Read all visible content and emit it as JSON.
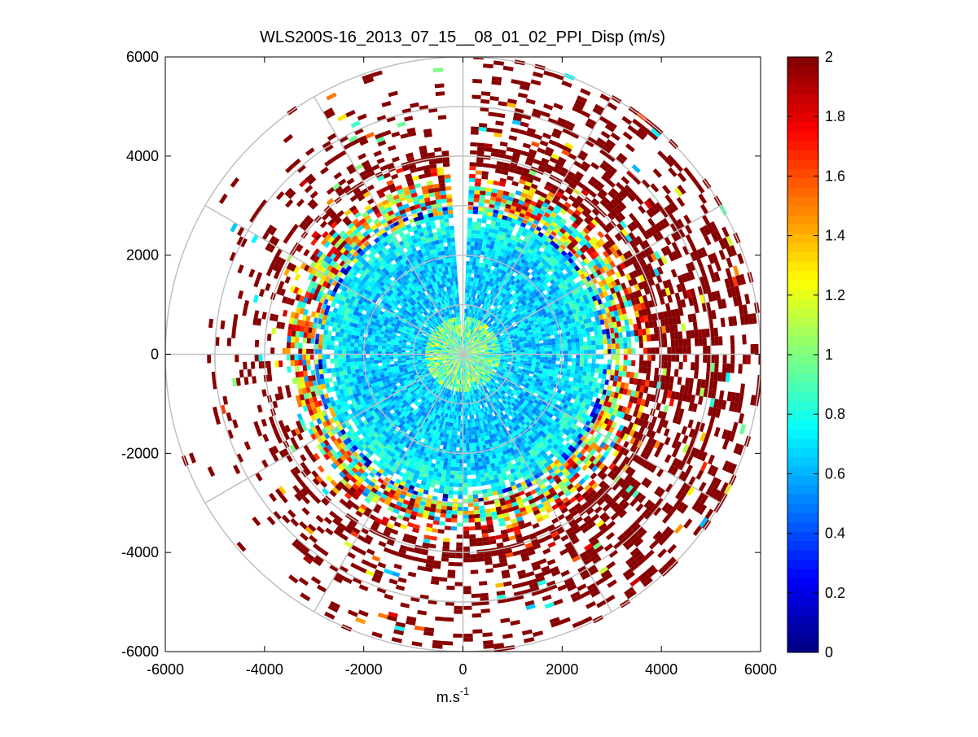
{
  "chart_data": {
    "type": "heatmap",
    "subtype": "polar-ppi",
    "title": "WLS200S-16_2013_07_15__08_01_02_PPI_Disp (m/s)",
    "xlabel": "m.s",
    "xlabel_superscript": "-1",
    "ylabel": "",
    "xlim": [
      -6000,
      6000
    ],
    "ylim": [
      -6000,
      6000
    ],
    "x_ticks": [
      -6000,
      -4000,
      -2000,
      0,
      2000,
      4000,
      6000
    ],
    "y_ticks": [
      -6000,
      -4000,
      -2000,
      0,
      2000,
      4000,
      6000
    ],
    "x_tick_labels": [
      "-6000",
      "-4000",
      "-2000",
      "0",
      "2000",
      "4000",
      "6000"
    ],
    "y_tick_labels": [
      "-6000",
      "-4000",
      "-2000",
      "0",
      "2000",
      "4000",
      "6000"
    ],
    "polar_grid": {
      "range_rings": [
        1000,
        2000,
        3000,
        4000,
        5000,
        6000
      ],
      "spoke_angles_deg": [
        0,
        30,
        60,
        90,
        120,
        150,
        180,
        210,
        240,
        270,
        300,
        330
      ]
    },
    "colorbar": {
      "colormap": "jet",
      "clim": [
        0,
        2
      ],
      "ticks": [
        0,
        0.2,
        0.4,
        0.6,
        0.8,
        1,
        1.2,
        1.4,
        1.6,
        1.8,
        2
      ],
      "tick_labels": [
        "0",
        "0.2",
        "0.4",
        "0.6",
        "0.8",
        "1",
        "1.2",
        "1.4",
        "1.6",
        "1.8",
        "2"
      ],
      "levels": 64
    },
    "field_description_zones": [
      {
        "range_m": [
          0,
          800
        ],
        "typical_value": 0.9
      },
      {
        "range_m": [
          800,
          2400
        ],
        "typical_value": 0.65
      },
      {
        "range_m": [
          2400,
          3000
        ],
        "typical_value": 0.75
      },
      {
        "range_m": [
          3000,
          3600
        ],
        "typical_value": 1.3
      },
      {
        "range_m": [
          3600,
          6000
        ],
        "typical_value": 2.0
      }
    ],
    "gap_sector_deg": [
      -4,
      2
    ]
  },
  "colors": {
    "background": "#ffffff",
    "axis": "#000000",
    "grid": "#c0c0c0"
  }
}
